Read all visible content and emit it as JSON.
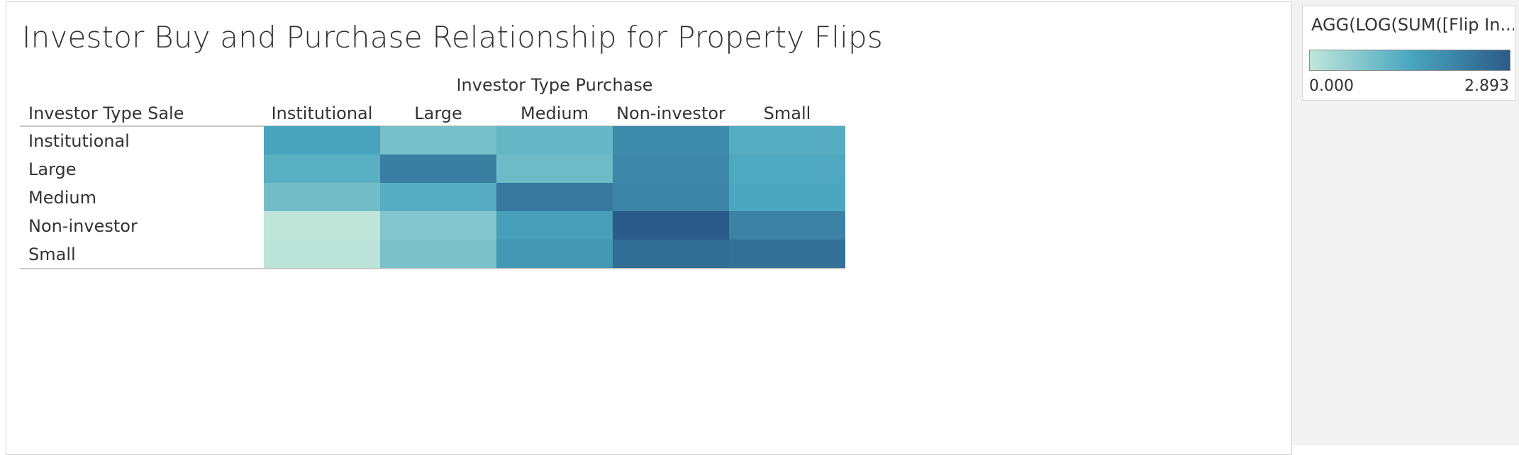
{
  "title": "Investor Buy and Purchase Relationship for Property Flips",
  "colors": {
    "scale_low": "#c0e6da",
    "scale_mid": "#4aa7bf",
    "scale_high": "#2b5b88",
    "header_rule": "#c8c8c8",
    "panel_bg": "#f2f2f2"
  },
  "legend": {
    "title": "AGG(LOG(SUM([Flip In...",
    "min_label": "0.000",
    "max_label": "2.893",
    "min": 0.0,
    "max": 2.893
  },
  "chart_data": {
    "type": "heatmap",
    "title": "Investor Buy and Purchase Relationship for Property Flips",
    "column_field": "Investor Type Purchase",
    "row_field": "Investor Type Sale",
    "columns": [
      "Institutional",
      "Large",
      "Medium",
      "Non-investor",
      "Small"
    ],
    "rows": [
      "Institutional",
      "Large",
      "Medium",
      "Non-investor",
      "Small"
    ],
    "values": [
      [
        1.5,
        0.9,
        1.1,
        2.0,
        1.3
      ],
      [
        1.25,
        2.2,
        1.0,
        2.05,
        1.4
      ],
      [
        0.95,
        1.3,
        2.3,
        2.1,
        1.45
      ],
      [
        0.0,
        0.75,
        1.6,
        2.89,
        2.15
      ],
      [
        0.05,
        0.85,
        1.75,
        2.55,
        2.5
      ]
    ],
    "color_range": [
      0.0,
      2.893
    ]
  }
}
